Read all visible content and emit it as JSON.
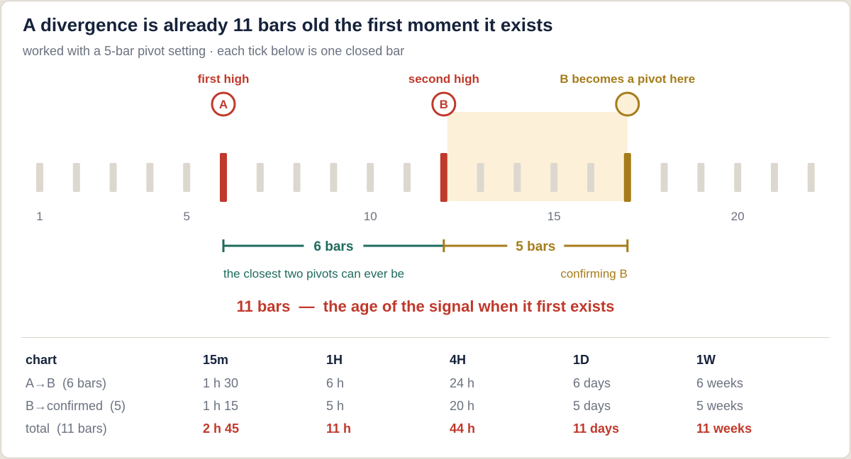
{
  "header": {
    "title": "A divergence is already 11 bars old the first moment it exists",
    "subtitle": "worked with a 5-bar pivot setting · each tick below is one closed bar"
  },
  "diagram": {
    "bar_count": 22,
    "axis_labels": [
      {
        "bar": 1,
        "text": "1"
      },
      {
        "bar": 5,
        "text": "5"
      },
      {
        "bar": 10,
        "text": "10"
      },
      {
        "bar": 15,
        "text": "15"
      },
      {
        "bar": 20,
        "text": "20"
      }
    ],
    "pivot_a": {
      "bar": 6,
      "letter": "A",
      "label": "first high"
    },
    "pivot_b": {
      "bar": 12,
      "letter": "B",
      "label": "second high"
    },
    "confirm": {
      "bar": 17,
      "label": "B becomes a pivot here"
    },
    "span_ab": {
      "text": "6 bars",
      "caption": "the closest two pivots can ever be"
    },
    "span_confirm": {
      "text": "5 bars",
      "caption": "confirming B"
    },
    "summary": "11 bars  —  the age of the signal when it first exists",
    "colors": {
      "tick": "#ddd8cf",
      "pivot": "#c0392b",
      "confirm": "#a67c1a",
      "span_ab": "#1f6b5e",
      "shade": "#fcf0d9",
      "axis_text": "#6b7280"
    }
  },
  "table": {
    "headers": [
      "chart",
      "15m",
      "1H",
      "4H",
      "1D",
      "1W"
    ],
    "rows": [
      {
        "label": "A→B  (6 bars)",
        "values": [
          "1 h 30",
          "6 h",
          "24 h",
          "6 days",
          "6 weeks"
        ],
        "emphasis": false
      },
      {
        "label": "B→confirmed  (5)",
        "values": [
          "1 h 15",
          "5 h",
          "20 h",
          "5 days",
          "5 weeks"
        ],
        "emphasis": false
      },
      {
        "label": "total  (11 bars)",
        "values": [
          "2 h 45",
          "11 h",
          "44 h",
          "11 days",
          "11 weeks"
        ],
        "emphasis": true
      }
    ]
  }
}
